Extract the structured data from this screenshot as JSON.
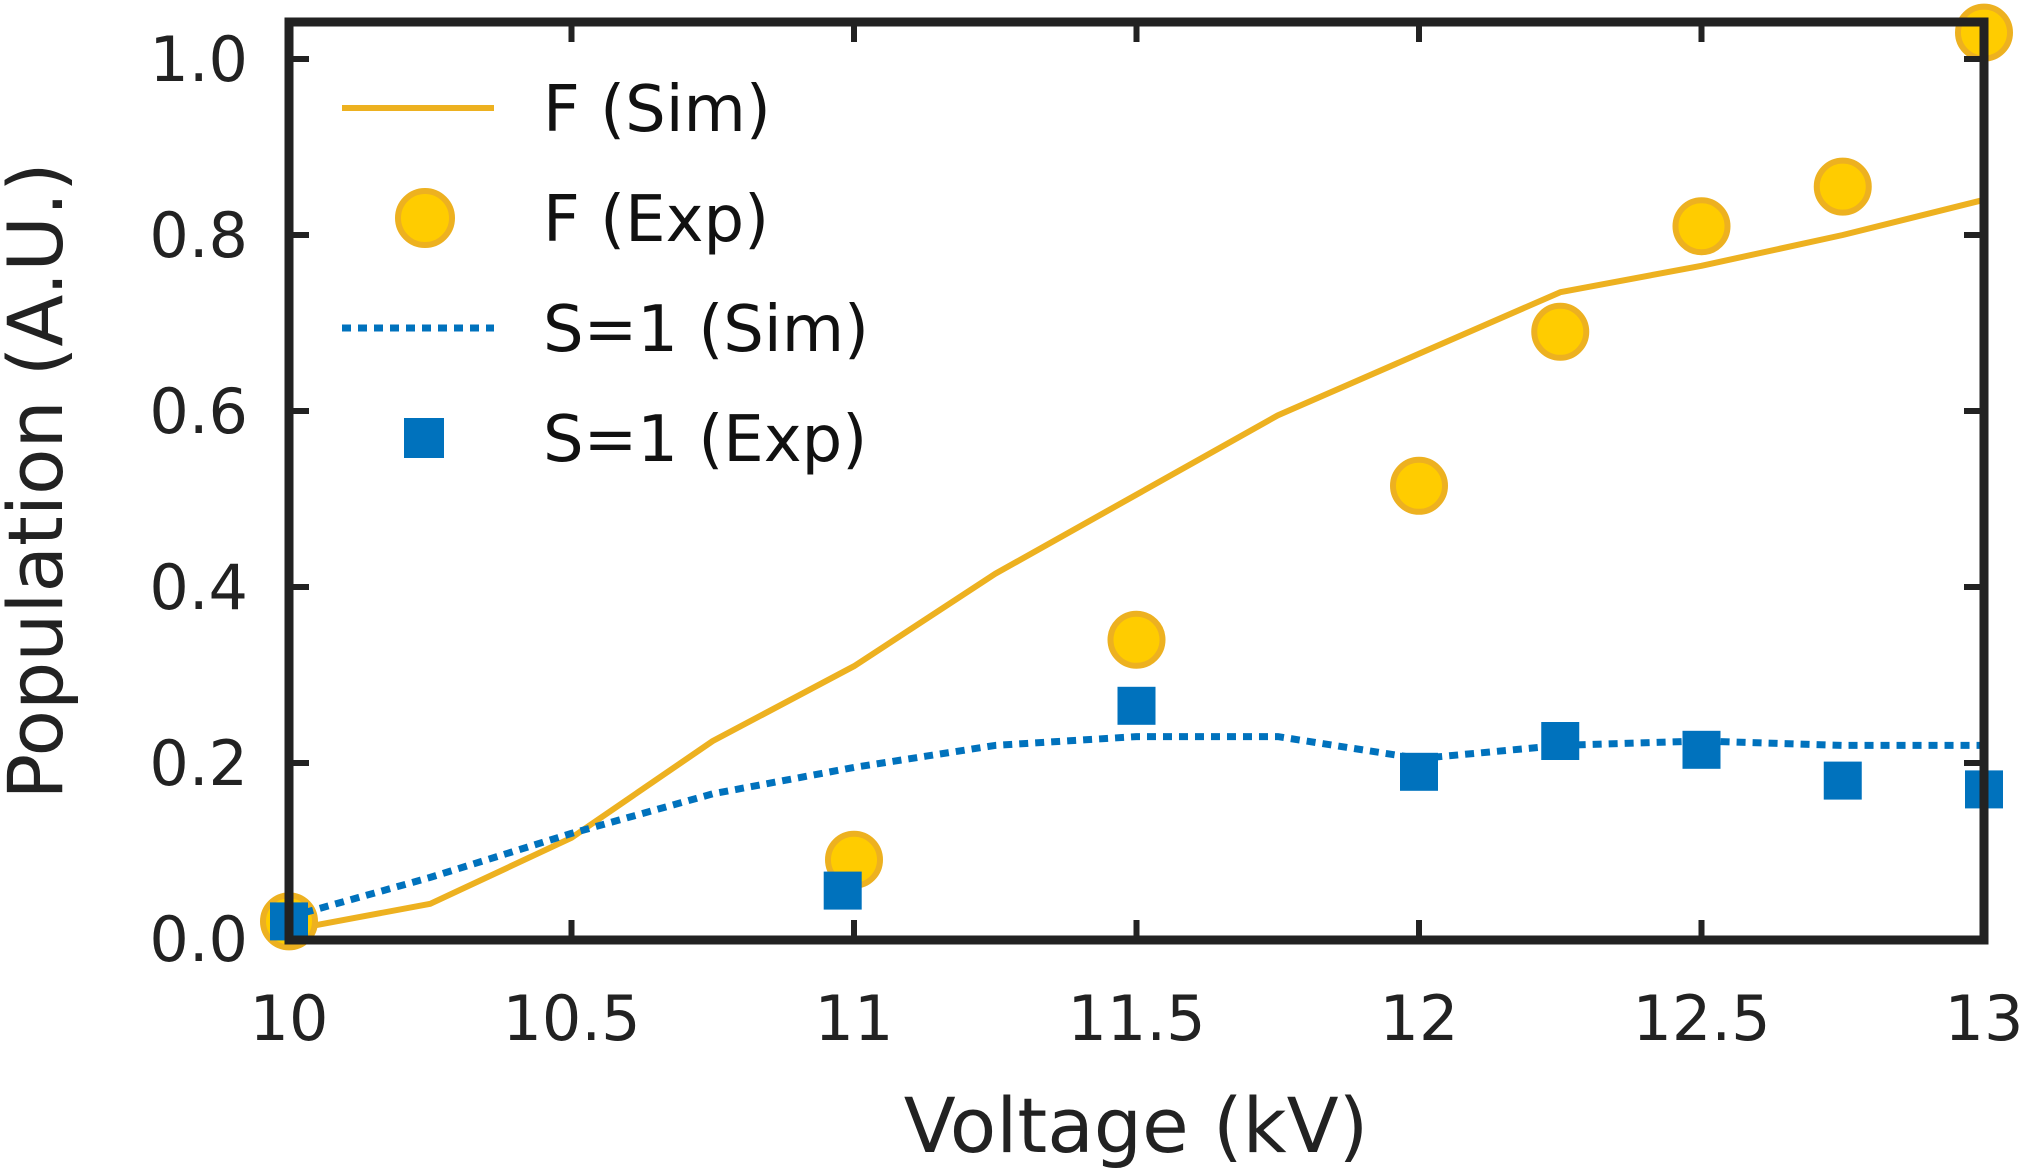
{
  "chart_data": {
    "type": "line",
    "title": "",
    "xlabel": "Voltage (kV)",
    "ylabel": "Population (A.U.)",
    "xlim": [
      10,
      13
    ],
    "ylim": [
      0,
      1.03
    ],
    "x_ticks": [
      {
        "value": 10,
        "label": "10"
      },
      {
        "value": 10.5,
        "label": "10.5"
      },
      {
        "value": 11,
        "label": "11"
      },
      {
        "value": 11.5,
        "label": "11.5"
      },
      {
        "value": 12,
        "label": "12"
      },
      {
        "value": 12.5,
        "label": "12.5"
      },
      {
        "value": 13,
        "label": "13"
      }
    ],
    "y_ticks": [
      {
        "value": 0,
        "label": "0.0"
      },
      {
        "value": 0.2,
        "label": "0.2"
      },
      {
        "value": 0.4,
        "label": "0.4"
      },
      {
        "value": 0.6,
        "label": "0.6"
      },
      {
        "value": 0.8,
        "label": "0.8"
      },
      {
        "value": 1.0,
        "label": "1.0"
      }
    ],
    "grid": false,
    "legend_position": "top-left",
    "series": [
      {
        "name": "F (Sim)",
        "kind": "line",
        "style": "solid",
        "color": "#EDB120",
        "x": [
          10,
          10.25,
          10.5,
          10.75,
          11,
          11.25,
          11.5,
          11.75,
          12,
          12.25,
          12.5,
          12.75,
          13
        ],
        "y": [
          0.01,
          0.04,
          0.115,
          0.225,
          0.31,
          0.415,
          0.505,
          0.595,
          0.665,
          0.735,
          0.765,
          0.8,
          0.84
        ]
      },
      {
        "name": "F (Exp)",
        "kind": "scatter",
        "marker": "circle",
        "color": "#FFCC00",
        "edge_color": "#EDB120",
        "x": [
          10,
          11,
          11.5,
          12,
          12.25,
          12.5,
          12.75,
          13
        ],
        "y": [
          0.02,
          0.09,
          0.34,
          0.515,
          0.69,
          0.81,
          0.855,
          1.03
        ]
      },
      {
        "name": "S=1 (Sim)",
        "kind": "line",
        "style": "dotted",
        "color": "#0072BD",
        "x": [
          10,
          10.25,
          10.5,
          10.75,
          11,
          11.25,
          11.5,
          11.75,
          12,
          12.25,
          12.5,
          12.75,
          13
        ],
        "y": [
          0.025,
          0.07,
          0.12,
          0.165,
          0.195,
          0.22,
          0.23,
          0.23,
          0.205,
          0.22,
          0.225,
          0.22,
          0.22
        ]
      },
      {
        "name": "S=1 (Exp)",
        "kind": "scatter",
        "marker": "square",
        "color": "#0072BD",
        "x": [
          10,
          10.98,
          11.5,
          12,
          12.25,
          12.5,
          12.75,
          13
        ],
        "y": [
          0.02,
          0.055,
          0.265,
          0.19,
          0.225,
          0.215,
          0.18,
          0.17
        ]
      }
    ]
  }
}
